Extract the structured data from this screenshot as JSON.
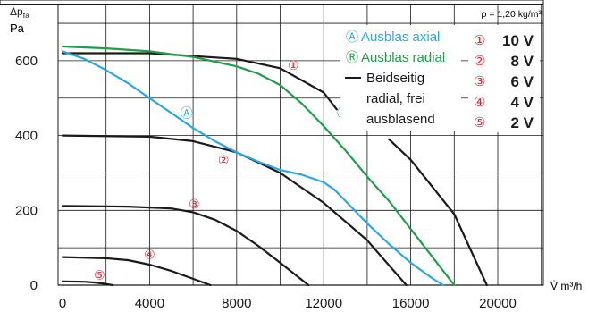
{
  "chart_data": {
    "type": "line",
    "density_note": "ρ = 1,20 kg/m³",
    "ylabel_main": "Δp",
    "ylabel_sub": "fa",
    "ylabel_unit": "Pa",
    "xlabel": "V̇ m³/h",
    "xlim": [
      0,
      24000
    ],
    "ylim": [
      0,
      700
    ],
    "xticks": [
      0,
      4000,
      8000,
      12000,
      16000,
      20000
    ],
    "xtick_labels": [
      "0",
      "4000",
      "8000",
      "12000",
      "16000",
      "20000"
    ],
    "yticks": [
      0,
      200,
      400,
      600
    ],
    "ytick_labels": [
      "0",
      "200",
      "400",
      "600"
    ],
    "grid": true,
    "colors": {
      "axial": "#29a9e1",
      "radial": "#1f9e48",
      "free": "#1a1a1a",
      "marker": "#e4202a"
    },
    "legend_modes": [
      {
        "symbol": "Ⓐ",
        "text": "Ausblas axial",
        "color": "#29a9e1"
      },
      {
        "symbol": "Ⓡ",
        "text": "Ausblas radial",
        "color": "#1f9e48"
      },
      {
        "symbol": "line",
        "text": "Beidseitig",
        "color": "#1a1a1a"
      },
      {
        "symbol": "",
        "text": "radial, frei",
        "color": "#1a1a1a"
      },
      {
        "symbol": "",
        "text": "ausblasend",
        "color": "#1a1a1a"
      }
    ],
    "legend_voltages": [
      {
        "symbol": "①",
        "text": "10 V"
      },
      {
        "symbol": "②",
        "text": "8 V"
      },
      {
        "symbol": "③",
        "text": "6 V"
      },
      {
        "symbol": "④",
        "text": "4 V"
      },
      {
        "symbol": "⑤",
        "text": "2 V"
      }
    ],
    "series": [
      {
        "mode": "free",
        "speed": "①",
        "x": [
          0,
          4000,
          8000,
          10000,
          12000,
          12600
        ],
        "y": [
          620,
          620,
          605,
          580,
          515,
          470
        ]
      },
      {
        "mode": "free",
        "speed": "①",
        "x": [
          15000,
          16000,
          18000,
          19500
        ],
        "y": [
          390,
          335,
          190,
          0
        ]
      },
      {
        "mode": "free",
        "speed": "②",
        "x": [
          0,
          4000,
          6000,
          8000,
          10000,
          12000,
          14000,
          15800
        ],
        "y": [
          400,
          397,
          385,
          355,
          300,
          220,
          120,
          0
        ]
      },
      {
        "mode": "free",
        "speed": "③",
        "x": [
          0,
          3000,
          5000,
          6000,
          7000,
          8000,
          9000,
          10000,
          11300
        ],
        "y": [
          212,
          210,
          205,
          195,
          175,
          145,
          105,
          60,
          0
        ]
      },
      {
        "mode": "free",
        "speed": "④",
        "x": [
          0,
          2000,
          3000,
          4000,
          5000,
          6000,
          6800
        ],
        "y": [
          75,
          72,
          67,
          55,
          38,
          17,
          0
        ]
      },
      {
        "mode": "free",
        "speed": "⑤",
        "x": [
          0,
          1000,
          1500,
          2000,
          2300
        ],
        "y": [
          10,
          9,
          7,
          3,
          0
        ]
      },
      {
        "mode": "axial",
        "speed": "①",
        "x": [
          0,
          1000,
          2000,
          3000,
          4000,
          5000,
          6000,
          7000,
          8000,
          9000,
          10000,
          11000,
          12000,
          12500,
          13000,
          14000,
          15000,
          16000,
          17000,
          17500
        ],
        "y": [
          625,
          605,
          575,
          540,
          500,
          460,
          420,
          385,
          355,
          330,
          308,
          295,
          275,
          255,
          225,
          165,
          110,
          60,
          18,
          0
        ]
      },
      {
        "mode": "radial",
        "speed": "①",
        "x": [
          0,
          2000,
          4000,
          6000,
          8000,
          9000,
          10000,
          11000,
          12000,
          13000,
          14000,
          15000,
          16000,
          17000,
          18000
        ],
        "y": [
          638,
          633,
          625,
          610,
          585,
          565,
          535,
          485,
          425,
          360,
          290,
          225,
          150,
          75,
          0
        ]
      }
    ],
    "curve_markers": [
      {
        "symbol": "①",
        "x": 10600,
        "y": 588,
        "color": "#e4202a"
      },
      {
        "symbol": "②",
        "x": 7400,
        "y": 335,
        "color": "#e4202a"
      },
      {
        "symbol": "③",
        "x": 6050,
        "y": 217,
        "color": "#e4202a"
      },
      {
        "symbol": "④",
        "x": 4000,
        "y": 82,
        "color": "#e4202a"
      },
      {
        "symbol": "⑤",
        "x": 1700,
        "y": 28,
        "color": "#e4202a"
      },
      {
        "symbol": "Ⓐ",
        "x": 5700,
        "y": 460,
        "color": "#29a9e1"
      },
      {
        "symbol": "Ⓡ",
        "x": 12900,
        "y": 460,
        "color": "#1f9e48"
      }
    ]
  }
}
